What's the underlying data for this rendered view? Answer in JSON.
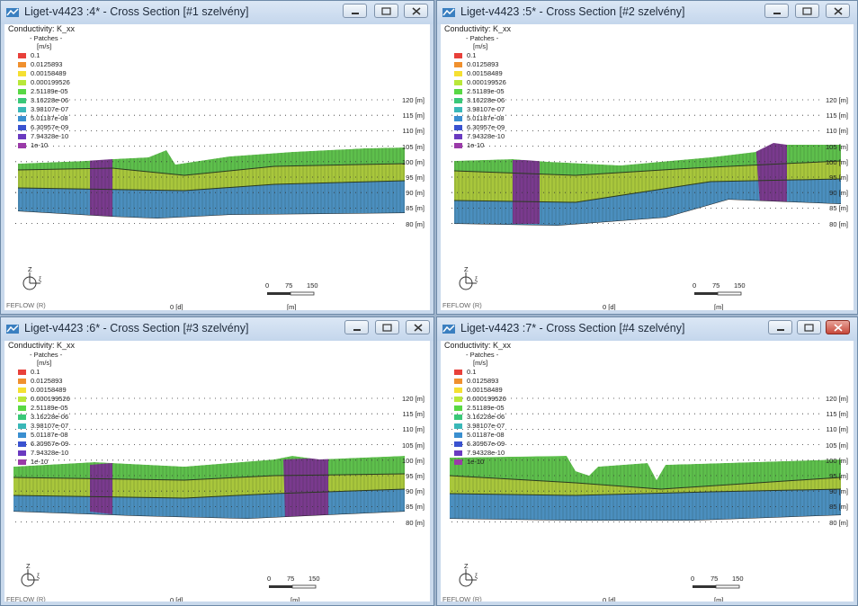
{
  "windows": [
    {
      "title": "Liget-v4423 :4* - Cross Section [#1 szelvény]",
      "y_ticks": [
        "120 [m]",
        "115 [m]",
        "110 [m]",
        "105 [m]",
        "100 [m]",
        "95 [m]",
        "90 [m]",
        "85 [m]",
        "80 [m]"
      ]
    },
    {
      "title": "Liget-v4423 :5* - Cross Section [#2 szelvény]",
      "y_ticks": [
        "120 [m]",
        "115 [m]",
        "110 [m]",
        "105 [m]",
        "100 [m]",
        "95 [m]",
        "90 [m]",
        "85 [m]",
        "80 [m]"
      ]
    },
    {
      "title": "Liget-v4423 :6* - Cross Section [#3 szelvény]",
      "y_ticks": [
        "120 [m]",
        "115 [m]",
        "110 [m]",
        "105 [m]",
        "100 [m]",
        "95 [m]",
        "90 [m]",
        "85 [m]",
        "80 [m]"
      ]
    },
    {
      "title": "Liget-v4423 :7* - Cross Section [#4 szelvény]",
      "y_ticks": [
        "120 [m]",
        "115 [m]",
        "110 [m]",
        "105 [m]",
        "100 [m]",
        "95 [m]",
        "90 [m]",
        "85 [m]",
        "80 [m]"
      ]
    }
  ],
  "legend": {
    "title": "Conductivity: K_xx",
    "subtitle": "- Patches -",
    "unit": "[m/s]",
    "items": [
      {
        "label": "0.1",
        "color": "#e8403a"
      },
      {
        "label": "0.0125893",
        "color": "#f0902e"
      },
      {
        "label": "0.00158489",
        "color": "#f5e032"
      },
      {
        "label": "0.000199526",
        "color": "#b9e83a"
      },
      {
        "label": "2.51189e-05",
        "color": "#58d844"
      },
      {
        "label": "3.16228e-06",
        "color": "#3ac878"
      },
      {
        "label": "3.98107e-07",
        "color": "#3ab8b8"
      },
      {
        "label": "5.01187e-08",
        "color": "#3a8fd0"
      },
      {
        "label": "6.30957e-09",
        "color": "#3a52d0"
      },
      {
        "label": "7.94328e-10",
        "color": "#6a3ac0"
      },
      {
        "label": "1e-10",
        "color": "#9a3aa8"
      }
    ]
  },
  "footer": {
    "brand": "FEFLOW (R)",
    "zero": "0 [d]",
    "unit": "[m]"
  },
  "scale": {
    "labels": [
      "0",
      "75",
      "150"
    ]
  },
  "axis": {
    "z": "Z"
  },
  "colors": {
    "top_layer": "#5ec04c",
    "mid_layer": "#a9c73c",
    "low_layer": "#4b8fbf",
    "peat": "#7a3a8e"
  }
}
